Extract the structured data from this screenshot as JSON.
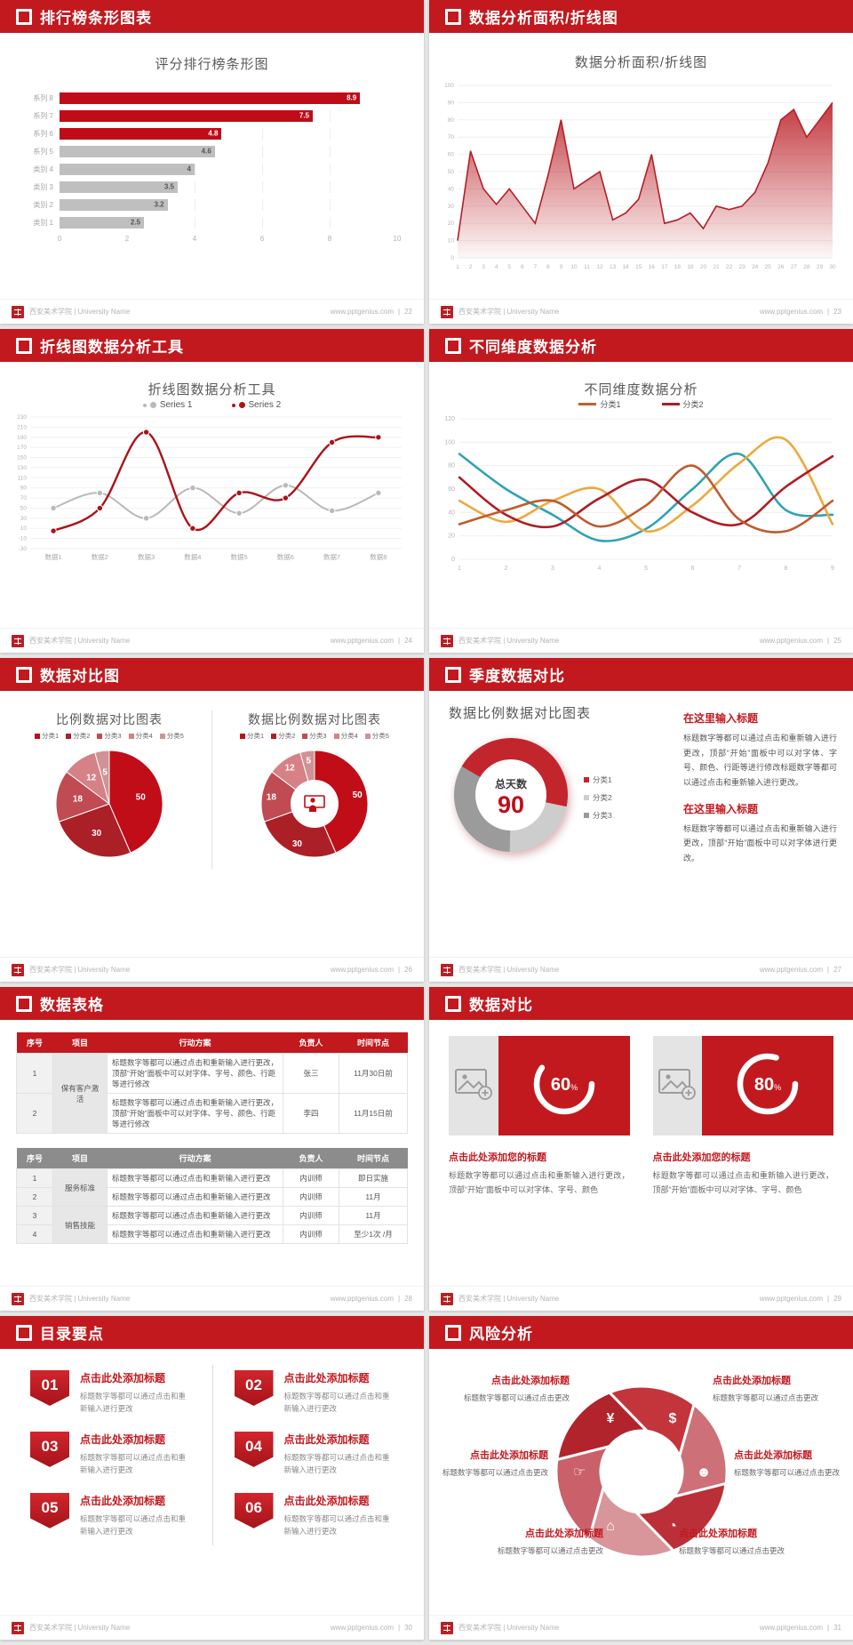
{
  "footer": {
    "org": "西安美术学院 | University Name",
    "site": "www.pptgenius.com"
  },
  "slides": {
    "s1": {
      "title": "排行榜条形图表",
      "page": "22"
    },
    "s2": {
      "title": "数据分析面积/折线图",
      "page": "23"
    },
    "s3": {
      "title": "折线图数据分析工具",
      "page": "24"
    },
    "s4": {
      "title": "不同维度数据分析",
      "page": "25"
    },
    "s5": {
      "title": "数据对比图",
      "page": "26"
    },
    "s6": {
      "title": "季度数据对比",
      "page": "27",
      "blocks": [
        {
          "heading": "在这里输入标题",
          "body": "标题数字等都可以通过点击和重新输入进行更改，顶部“开始”面板中可以对字体、字号、颜色、行距等进行修改标题数字等都可以通过点击和重新输入进行更改。"
        },
        {
          "heading": "在这里输入标题",
          "body": "标题数字等都可以通过点击和重新输入进行更改，顶部“开始”面板中可以对字体进行更改。"
        }
      ]
    },
    "s7": {
      "title": "数据表格",
      "page": "28",
      "tables": [
        {
          "style": "red",
          "headers": [
            "序号",
            "项目",
            "行动方案",
            "负责人",
            "时间节点"
          ],
          "groups": [
            {
              "project": "保有客户激活",
              "rows": [
                [
                  "1",
                  "标题数字等都可以通过点击和重新输入进行更改，顶部“开始”面板中可以对字体、字号、颜色、行距等进行修改",
                  "张三",
                  "11月30日前"
                ],
                [
                  "2",
                  "标题数字等都可以通过点击和重新输入进行更改，顶部“开始”面板中可以对字体、字号、颜色、行距等进行修改",
                  "李四",
                  "11月15日前"
                ]
              ]
            }
          ]
        },
        {
          "style": "gray",
          "headers": [
            "序号",
            "项目",
            "行动方案",
            "负责人",
            "时间节点"
          ],
          "groups": [
            {
              "project": "服务标准",
              "rows": [
                [
                  "1",
                  "标题数字等都可以通过点击和重新输入进行更改",
                  "内训师",
                  "即日实施"
                ],
                [
                  "2",
                  "标题数字等都可以通过点击和重新输入进行更改",
                  "内训师",
                  "11月"
                ]
              ]
            },
            {
              "project": "销售技能",
              "rows": [
                [
                  "3",
                  "标题数字等都可以通过点击和重新输入进行更改",
                  "内训师",
                  "11月"
                ],
                [
                  "4",
                  "标题数字等都可以通过点击和重新输入进行更改",
                  "内训师",
                  "至少1次 /月"
                ]
              ]
            }
          ]
        }
      ]
    },
    "s8": {
      "title": "数据对比",
      "page": "29",
      "cards": [
        {
          "percent": 60,
          "heading": "点击此处添加您的标题",
          "body": "标题数字等都可以通过点击和重新输入进行更改，顶部“开始”面板中可以对字体、字号、颜色"
        },
        {
          "percent": 80,
          "heading": "点击此处添加您的标题",
          "body": "标题数字等都可以通过点击和重新输入进行更改，顶部“开始”面板中可以对字体、字号、颜色"
        }
      ]
    },
    "s9": {
      "title": "目录要点",
      "page": "30",
      "items": [
        {
          "num": "01",
          "heading": "点击此处添加标题",
          "body": "标题数字等都可以通过点击和重新输入进行更改"
        },
        {
          "num": "02",
          "heading": "点击此处添加标题",
          "body": "标题数字等都可以通过点击和重新输入进行更改"
        },
        {
          "num": "03",
          "heading": "点击此处添加标题",
          "body": "标题数字等都可以通过点击和重新输入进行更改"
        },
        {
          "num": "04",
          "heading": "点击此处添加标题",
          "body": "标题数字等都可以通过点击和重新输入进行更改"
        },
        {
          "num": "05",
          "heading": "点击此处添加标题",
          "body": "标题数字等都可以通过点击和重新输入进行更改"
        },
        {
          "num": "06",
          "heading": "点击此处添加标题",
          "body": "标题数字等都可以通过点击和重新输入进行更改"
        }
      ]
    },
    "s10": {
      "title": "风险分析",
      "page": "31",
      "labels": [
        {
          "pos": "tl",
          "heading": "点击此处添加标题",
          "body": "标题数字等都可以通过点击更改"
        },
        {
          "pos": "tr",
          "heading": "点击此处添加标题",
          "body": "标题数字等都可以通过点击更改"
        },
        {
          "pos": "ml",
          "heading": "点击此处添加标题",
          "body": "标题数字等都可以通过点击更改"
        },
        {
          "pos": "mr",
          "heading": "点击此处添加标题",
          "body": "标题数字等都可以通过点击更改"
        },
        {
          "pos": "bl",
          "heading": "点击此处添加标题",
          "body": "标题数字等都可以通过点击更改"
        },
        {
          "pos": "br",
          "heading": "点击此处添加标题",
          "body": "标题数字等都可以通过点击更改"
        }
      ],
      "icons": [
        {
          "name": "money-bag-icon",
          "glyph": "¥"
        },
        {
          "name": "coins-icon",
          "glyph": "$"
        },
        {
          "name": "people-icon",
          "glyph": "☻"
        },
        {
          "name": "pie-chart-icon",
          "glyph": "◔"
        },
        {
          "name": "building-icon",
          "glyph": "⌂"
        },
        {
          "name": "hand-money-icon",
          "glyph": "☞"
        }
      ]
    }
  },
  "chart_data": [
    {
      "type": "bar",
      "orientation": "horizontal",
      "title": "评分排行榜条形图",
      "categories": [
        "系列 8",
        "系列 7",
        "系列 6",
        "系列 5",
        "类别 4",
        "类别 3",
        "类别 2",
        "类别 1"
      ],
      "values": [
        8.9,
        7.5,
        4.8,
        4.6,
        4,
        3.5,
        3.2,
        2.5
      ],
      "colors": [
        "#c00c18",
        "#c00c18",
        "#c00c18",
        "#bfbfbf",
        "#bfbfbf",
        "#bfbfbf",
        "#bfbfbf",
        "#bfbfbf"
      ],
      "xlim": [
        0,
        10
      ],
      "xticks": [
        0,
        2,
        4,
        6,
        8,
        10
      ],
      "grid": true
    },
    {
      "type": "area",
      "title": "数据分析面积/折线图",
      "x": [
        1,
        2,
        3,
        4,
        5,
        6,
        7,
        8,
        9,
        10,
        11,
        12,
        13,
        14,
        15,
        16,
        17,
        18,
        19,
        20,
        21,
        22,
        23,
        24,
        25,
        26,
        27,
        28,
        29,
        30
      ],
      "values": [
        10,
        62,
        40,
        31,
        40,
        30,
        20,
        48,
        80,
        40,
        45,
        50,
        22,
        26,
        34,
        60,
        20,
        22,
        26,
        17,
        30,
        28,
        30,
        38,
        55,
        80,
        86,
        70,
        80,
        90
      ],
      "ylim": [
        0,
        100
      ],
      "ytick_step": 10,
      "line_color": "#b41f26",
      "grid": true
    },
    {
      "type": "line",
      "title": "折线图数据分析工具",
      "categories": [
        "数据1",
        "数据2",
        "数据3",
        "数据4",
        "数据5",
        "数据6",
        "数据7",
        "数据8"
      ],
      "ylim": [
        -30,
        230
      ],
      "ytick_step": 20,
      "grid": true,
      "legend_position": "top",
      "series": [
        {
          "name": "Series 1",
          "color": "#b9b9b9",
          "values": [
            50,
            80,
            30,
            90,
            40,
            95,
            45,
            80
          ]
        },
        {
          "name": "Series 2",
          "color": "#ab1218",
          "values": [
            5,
            50,
            200,
            10,
            80,
            70,
            180,
            190
          ]
        }
      ]
    },
    {
      "type": "line",
      "title": "不同维度数据分析",
      "x": [
        1,
        2,
        3,
        4,
        5,
        6,
        7,
        8,
        9
      ],
      "ylim": [
        0,
        120
      ],
      "ytick_step": 20,
      "grid": true,
      "legend": [
        "分类1",
        "分类2"
      ],
      "legend_colors": [
        "#c2622a",
        "#b01c24"
      ],
      "series": [
        {
          "name": "teal",
          "color": "#2fa3b4",
          "values": [
            90,
            60,
            38,
            16,
            26,
            60,
            90,
            42,
            38
          ]
        },
        {
          "name": "orange",
          "color": "#eda83c",
          "values": [
            50,
            32,
            50,
            60,
            24,
            46,
            82,
            102,
            30
          ]
        },
        {
          "name": "crimson",
          "color": "#b01c24",
          "values": [
            70,
            38,
            28,
            52,
            68,
            40,
            30,
            62,
            88
          ]
        },
        {
          "name": "brick",
          "color": "#bf5a2e",
          "values": [
            30,
            42,
            50,
            28,
            46,
            80,
            34,
            24,
            50
          ]
        }
      ]
    },
    {
      "type": "pie",
      "title": "比例数据对比图表",
      "labels": [
        "分类1",
        "分类2",
        "分类3",
        "分类4",
        "分类5"
      ],
      "values": [
        50,
        30,
        18,
        12,
        5
      ],
      "colors": [
        "#c10d18",
        "#ab2026",
        "#c14b52",
        "#d58186",
        "#cf9396"
      ]
    },
    {
      "type": "donut",
      "title": "数据比例数据对比图表",
      "labels": [
        "分类1",
        "分类2",
        "分类3",
        "分类4",
        "分类5"
      ],
      "values": [
        50,
        30,
        18,
        12,
        5
      ],
      "colors": [
        "#c10d18",
        "#ab2026",
        "#c14b52",
        "#d58186",
        "#cf9396"
      ],
      "center_icon": "presenter-icon"
    },
    {
      "type": "donut",
      "title": "数据比例数据对比图表",
      "labels": [
        "分类1",
        "分类2",
        "分类3"
      ],
      "values": [
        45,
        22,
        33
      ],
      "colors": [
        "#c2262c",
        "#cdcdcd",
        "#9b9b9b"
      ],
      "center_label": "总天数",
      "center_value": "90",
      "start_angle": -60
    },
    {
      "type": "gauge",
      "value": 60,
      "unit": "%"
    },
    {
      "type": "gauge",
      "value": 80,
      "unit": "%"
    }
  ]
}
